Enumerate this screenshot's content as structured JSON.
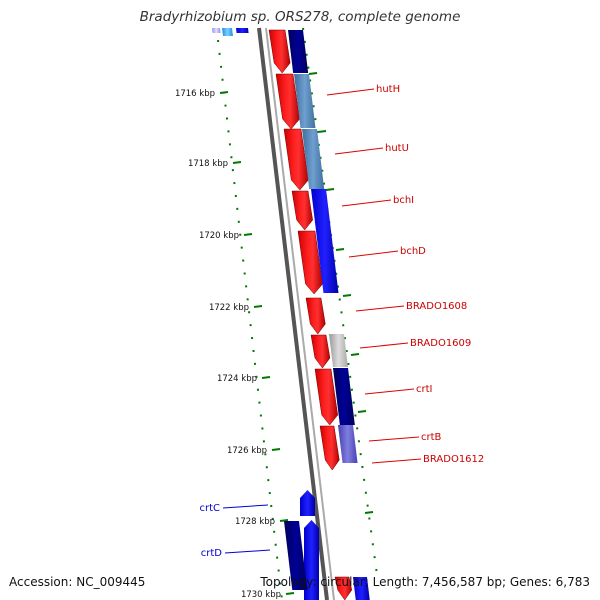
{
  "title": "Bradyrhizobium sp. ORS278, complete genome",
  "accession": "Accession: NC_009445",
  "summary": "Topology: circular; Length: 7,456,587 bp; Genes: 6,783",
  "colors": {
    "forward_cds": "#ff0000",
    "reverse_cds": "#0000ff",
    "label_forward": "#cc0000",
    "label_reverse": "#0000cc",
    "backbone": "#888888",
    "ticks": "#007a00"
  },
  "ticks": [
    {
      "label": "1716 kbp",
      "kbp": 1716
    },
    {
      "label": "1718 kbp",
      "kbp": 1718
    },
    {
      "label": "1720 kbp",
      "kbp": 1720
    },
    {
      "label": "1722 kbp",
      "kbp": 1722
    },
    {
      "label": "1724 kbp",
      "kbp": 1724
    },
    {
      "label": "1726 kbp",
      "kbp": 1726
    },
    {
      "label": "1728 kbp",
      "kbp": 1728
    },
    {
      "label": "1730 kbp",
      "kbp": 1730
    }
  ],
  "gene_labels_right": [
    {
      "label": "hutH"
    },
    {
      "label": "hutU"
    },
    {
      "label": "bchI"
    },
    {
      "label": "bchD"
    },
    {
      "label": "BRADO1608"
    },
    {
      "label": "BRADO1609"
    },
    {
      "label": "crtI"
    },
    {
      "label": "crtB"
    },
    {
      "label": "BRADO1612"
    }
  ],
  "gene_labels_left": [
    {
      "label": "crtC"
    },
    {
      "label": "crtD"
    }
  ]
}
